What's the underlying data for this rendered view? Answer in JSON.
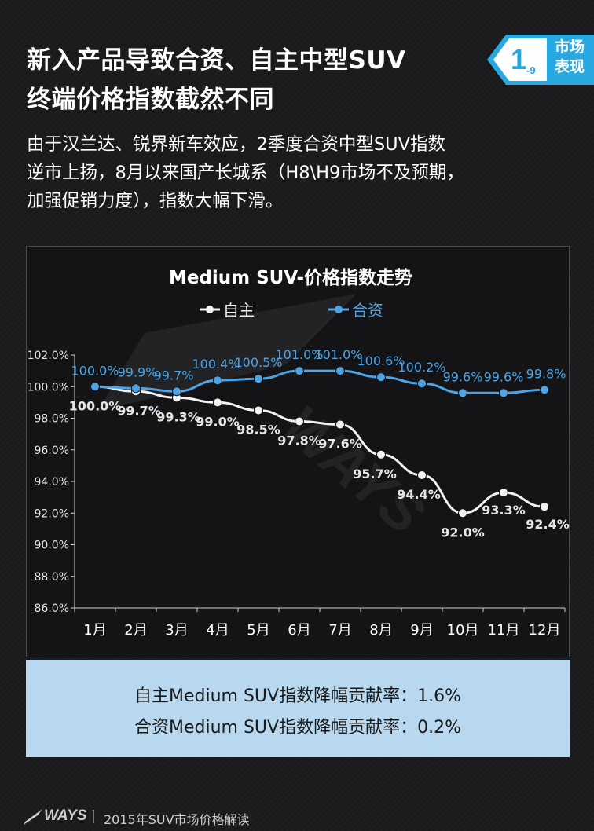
{
  "header": {
    "title_line1": "新入产品导致合资、自主中型SUV",
    "title_line2": "终端价格指数截然不同",
    "badge_number": "1",
    "badge_sub": "-9",
    "badge_line1": "市场",
    "badge_line2": "表现"
  },
  "intro": {
    "line1": "由于汉兰达、锐界新车效应，2季度合资中型SUV指数",
    "line2": "逆市上扬，8月以来国产长城系（H8\\H9市场不及预期，",
    "line3": "加强促销力度），指数大幅下滑。"
  },
  "chart_data": {
    "type": "line",
    "title": "Medium  SUV-价格指数走势",
    "categories": [
      "1月",
      "2月",
      "3月",
      "4月",
      "5月",
      "6月",
      "7月",
      "8月",
      "9月",
      "10月",
      "11月",
      "12月"
    ],
    "series": [
      {
        "name": "自主",
        "color": "#f2f2f2",
        "values": [
          100.0,
          99.7,
          99.3,
          99.0,
          98.5,
          97.8,
          97.6,
          95.7,
          94.4,
          92.0,
          93.3,
          92.4
        ],
        "labels": [
          "100.0%",
          "99.7%",
          "99.3%",
          "99.0%",
          "98.5%",
          "97.8%",
          "97.6%",
          "95.7%",
          "94.4%",
          "92.0%",
          "93.3%",
          "92.4%"
        ]
      },
      {
        "name": "合资",
        "color": "#4da3e4",
        "values": [
          100.0,
          99.9,
          99.7,
          100.4,
          100.5,
          101.0,
          101.0,
          100.6,
          100.2,
          99.6,
          99.6,
          99.8
        ],
        "labels": [
          "100.0%",
          "99.9%",
          "99.7%",
          "100.4%",
          "100.5%",
          "101.0%",
          "101.0%",
          "100.6%",
          "100.2%",
          "99.6%",
          "99.6%",
          "99.8%"
        ]
      }
    ],
    "ylim": [
      86.0,
      102.0
    ],
    "yticks": [
      86.0,
      88.0,
      90.0,
      92.0,
      94.0,
      96.0,
      98.0,
      100.0,
      102.0
    ],
    "ytick_labels": [
      "86.0%",
      "88.0%",
      "90.0%",
      "92.0%",
      "94.0%",
      "96.0%",
      "98.0%",
      "100.0%",
      "102.0%"
    ],
    "grid": false,
    "legend_position": "top-center",
    "xlabel": "",
    "ylabel": ""
  },
  "notes": {
    "line1": "自主Medium SUV指数降幅贡献率：1.6%",
    "line2": "合资Medium SUV指数降幅贡献率：0.2%"
  },
  "footer": {
    "logo": "WAYS",
    "separator": "|",
    "text": "2015年SUV市场价格解读"
  }
}
